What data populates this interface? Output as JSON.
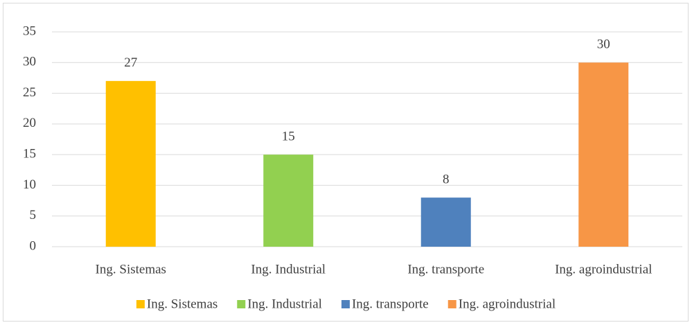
{
  "chart_data": {
    "type": "bar",
    "categories": [
      "Ing. Sistemas",
      "Ing. Industrial",
      "Ing. transporte",
      "Ing. agroindustrial"
    ],
    "values": [
      27,
      15,
      8,
      30
    ],
    "colors": [
      "#ffc000",
      "#92d050",
      "#4f81bd",
      "#f79646"
    ],
    "ylim": [
      0,
      35
    ],
    "yticks": [
      0,
      5,
      10,
      15,
      20,
      25,
      30,
      35
    ],
    "grid": true,
    "legend": "bottom"
  }
}
